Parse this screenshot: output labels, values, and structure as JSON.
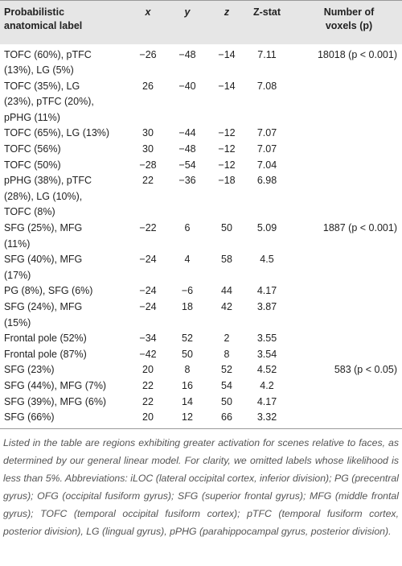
{
  "table": {
    "header": {
      "label": "Probabilistic anatomical label",
      "x": "x",
      "y": "y",
      "z": "z",
      "zstat": "Z-stat",
      "voxels": "Number of voxels (p)"
    },
    "rows": [
      {
        "label": [
          "TOFC (60%), pTFC",
          "(13%), LG (5%)"
        ],
        "x": "−26",
        "y": "−48",
        "z": "−14",
        "zstat": "7.11",
        "voxels": "18018 (p < 0.001)"
      },
      {
        "label": [
          "TOFC (35%), LG",
          "(23%), pTFC (20%),",
          "pPHG (11%)"
        ],
        "x": "26",
        "y": "−40",
        "z": "−14",
        "zstat": "7.08"
      },
      {
        "label": [
          "TOFC (65%), LG (13%)"
        ],
        "x": "30",
        "y": "−44",
        "z": "−12",
        "zstat": "7.07"
      },
      {
        "label": [
          "TOFC (56%)"
        ],
        "x": "30",
        "y": "−48",
        "z": "−12",
        "zstat": "7.07"
      },
      {
        "label": [
          "TOFC (50%)"
        ],
        "x": "−28",
        "y": "−54",
        "z": "−12",
        "zstat": "7.04"
      },
      {
        "label": [
          "pPHG (38%), pTFC",
          "(28%), LG (10%),",
          "TOFC (8%)"
        ],
        "x": "22",
        "y": "−36",
        "z": "−18",
        "zstat": "6.98"
      },
      {
        "label": [
          "SFG (25%), MFG",
          "(11%)"
        ],
        "x": "−22",
        "y": "6",
        "z": "50",
        "zstat": "5.09",
        "voxels": "1887 (p < 0.001)"
      },
      {
        "label": [
          "SFG (40%), MFG",
          "(17%)"
        ],
        "x": "−24",
        "y": "4",
        "z": "58",
        "zstat": "4.5"
      },
      {
        "label": [
          "PG (8%), SFG (6%)"
        ],
        "x": "−24",
        "y": "−6",
        "z": "44",
        "zstat": "4.17"
      },
      {
        "label": [
          "SFG (24%), MFG",
          "(15%)"
        ],
        "x": "−24",
        "y": "18",
        "z": "42",
        "zstat": "3.87"
      },
      {
        "label": [
          "Frontal pole (52%)"
        ],
        "x": "−34",
        "y": "52",
        "z": "2",
        "zstat": "3.55"
      },
      {
        "label": [
          "Frontal pole (87%)"
        ],
        "x": "−42",
        "y": "50",
        "z": "8",
        "zstat": "3.54"
      },
      {
        "label": [
          "SFG (23%)"
        ],
        "x": "20",
        "y": "8",
        "z": "52",
        "zstat": "4.52",
        "voxels": "583 (p < 0.05)"
      },
      {
        "label": [
          "SFG (44%), MFG (7%)"
        ],
        "x": "22",
        "y": "16",
        "z": "54",
        "zstat": "4.2"
      },
      {
        "label": [
          "SFG (39%), MFG (6%)"
        ],
        "x": "22",
        "y": "14",
        "z": "50",
        "zstat": "4.17"
      },
      {
        "label": [
          "SFG (66%)"
        ],
        "x": "20",
        "y": "12",
        "z": "66",
        "zstat": "3.32"
      }
    ],
    "note": "Listed in the table are regions exhibiting greater activation for scenes relative to faces, as determined by our general linear model. For clarity, we omitted labels whose likelihood is less than 5%. Abbreviations: iLOC (lateral occipital cortex, inferior division); PG (precentral gyrus); OFG (occipital fusiform gyrus); SFG (superior frontal gyrus); MFG (middle frontal gyrus); TOFC (temporal occipital fusiform cortex); pTFC (temporal fusiform cortex, posterior division), LG (lingual gyrus), pPHG (parahippocampal gyrus, posterior division)."
  }
}
